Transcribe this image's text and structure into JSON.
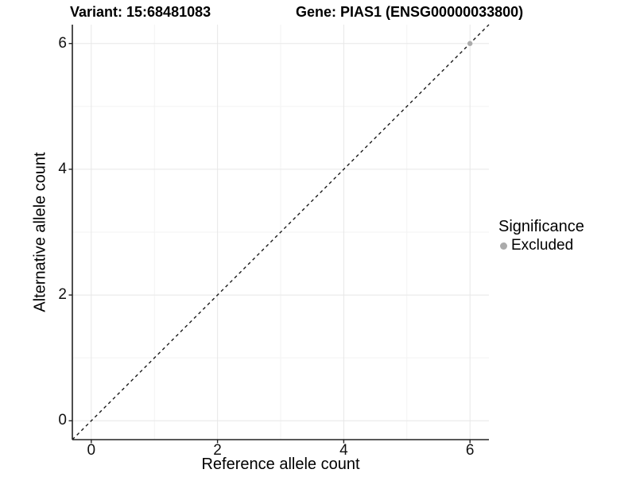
{
  "titles": {
    "left": "Variant: 15:68481083",
    "right": "Gene: PIAS1 (ENSG00000033800)"
  },
  "legend": {
    "title": "Significance",
    "items": [
      {
        "label": "Excluded",
        "color": "#ababab",
        "marker": "circle-icon"
      }
    ]
  },
  "chart_data": {
    "type": "scatter",
    "title": "Variant: 15:68481083    Gene: PIAS1 (ENSG00000033800)",
    "xlabel": "Reference allele count",
    "ylabel": "Alternative allele count",
    "xlim": [
      -0.3,
      6.3
    ],
    "ylim": [
      -0.3,
      6.3
    ],
    "x_major_ticks": [
      0,
      2,
      4,
      6
    ],
    "x_minor_ticks": [
      1,
      3,
      5
    ],
    "y_major_ticks": [
      0,
      2,
      4,
      6
    ],
    "y_minor_ticks": [
      1,
      3,
      5
    ],
    "x_tick_labels": [
      "0",
      "2",
      "4",
      "6"
    ],
    "y_tick_labels": [
      "0",
      "2",
      "4",
      "6"
    ],
    "grid": "major+minor",
    "legend_position": "right",
    "series": [
      {
        "name": "Excluded",
        "color": "#ababab",
        "points": [
          {
            "x": 6,
            "y": 6
          }
        ]
      }
    ],
    "reference_line": {
      "type": "identity",
      "slope": 1,
      "intercept": 0,
      "style": "dashed",
      "color": "#1a1a1a"
    }
  },
  "colors": {
    "background": "#ffffff",
    "grid_major": "#e7e7e7",
    "grid_minor": "#f3f3f3",
    "axis_line": "#222222",
    "tick_mark": "#222222",
    "point": "#ababab",
    "text": "#000000"
  }
}
